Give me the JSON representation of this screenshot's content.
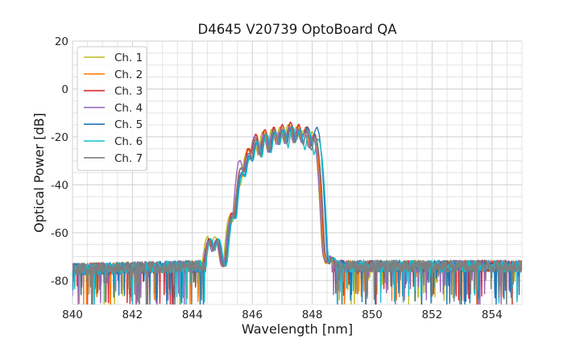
{
  "chart_data": {
    "type": "line",
    "title": "D4645 V20739 OptoBoard QA",
    "xlabel": "Wavelength [nm]",
    "ylabel": "Optical Power [dB]",
    "xlim": [
      840,
      855
    ],
    "ylim": [
      -90,
      20
    ],
    "xticks": [
      840,
      842,
      844,
      846,
      848,
      850,
      852,
      854
    ],
    "yticks": [
      -80,
      -60,
      -40,
      -20,
      0,
      20
    ],
    "grid": true,
    "legend_position": "top-left",
    "noise_floor_db": -74,
    "series": [
      {
        "name": "Ch. 1",
        "color": "#bcbd22",
        "x": [
          844.5,
          844.75,
          845.25,
          845.55,
          845.8,
          846.05,
          846.35,
          846.65,
          846.92,
          847.2,
          847.47,
          847.72,
          848.0,
          848.3,
          848.6
        ],
        "peaks": [
          -62,
          -62,
          -53,
          -40,
          -27,
          -21,
          -18,
          -17,
          -16,
          -15,
          -16,
          -17,
          -18,
          -70,
          -72
        ]
      },
      {
        "name": "Ch. 2",
        "color": "#ff7f0e",
        "x": [
          844.55,
          844.8,
          845.3,
          845.6,
          845.85,
          846.1,
          846.4,
          846.7,
          846.97,
          847.25,
          847.52,
          847.78,
          848.05,
          848.35,
          848.62
        ],
        "peaks": [
          -63,
          -63,
          -52,
          -36,
          -25,
          -20,
          -18,
          -17,
          -16,
          -15,
          -16,
          -17,
          -19,
          -71,
          -72
        ]
      },
      {
        "name": "Ch. 3",
        "color": "#d62728",
        "x": [
          844.55,
          844.8,
          845.32,
          845.62,
          845.88,
          846.12,
          846.42,
          846.72,
          847.0,
          847.28,
          847.55,
          847.8,
          848.08,
          848.38,
          848.65
        ],
        "peaks": [
          -63,
          -64,
          -52,
          -33,
          -25,
          -19,
          -17,
          -16,
          -15,
          -14,
          -15,
          -16,
          -19,
          -70,
          -73
        ]
      },
      {
        "name": "Ch. 4",
        "color": "#9467bd",
        "x": [
          844.52,
          844.78,
          845.28,
          845.58,
          845.83,
          846.08,
          846.38,
          846.68,
          846.95,
          847.23,
          847.5,
          847.75,
          848.02,
          848.32,
          848.58
        ],
        "peaks": [
          -64,
          -64,
          -54,
          -30,
          -28,
          -20,
          -19,
          -18,
          -17,
          -16,
          -17,
          -18,
          -20,
          -71,
          -72
        ]
      },
      {
        "name": "Ch. 5",
        "color": "#1f77b4",
        "x": [
          844.6,
          844.85,
          845.35,
          845.65,
          845.9,
          846.15,
          846.45,
          846.75,
          847.02,
          847.3,
          847.57,
          847.85,
          848.15,
          848.42,
          848.7
        ],
        "peaks": [
          -63,
          -63,
          -53,
          -35,
          -28,
          -22,
          -19,
          -18,
          -17,
          -16,
          -17,
          -16,
          -16,
          -71,
          -73
        ]
      },
      {
        "name": "Ch. 6",
        "color": "#17becf",
        "x": [
          844.62,
          844.88,
          845.38,
          845.68,
          845.93,
          846.18,
          846.48,
          846.78,
          847.05,
          847.35,
          847.6,
          847.9,
          848.2,
          848.45,
          848.72
        ],
        "peaks": [
          -63,
          -63,
          -53,
          -35,
          -28,
          -22,
          -19,
          -18,
          -17,
          -16,
          -17,
          -18,
          -21,
          -72,
          -73
        ]
      },
      {
        "name": "Ch. 7",
        "color": "#7f7f7f",
        "x": [
          844.58,
          844.83,
          845.33,
          845.63,
          845.88,
          846.13,
          846.43,
          846.73,
          847.0,
          847.28,
          847.55,
          847.82,
          848.1,
          848.4,
          848.67
        ],
        "peaks": [
          -64,
          -64,
          -53,
          -33,
          -27,
          -21,
          -19,
          -17,
          -17,
          -16,
          -17,
          -18,
          -20,
          -71,
          -73
        ]
      }
    ]
  }
}
